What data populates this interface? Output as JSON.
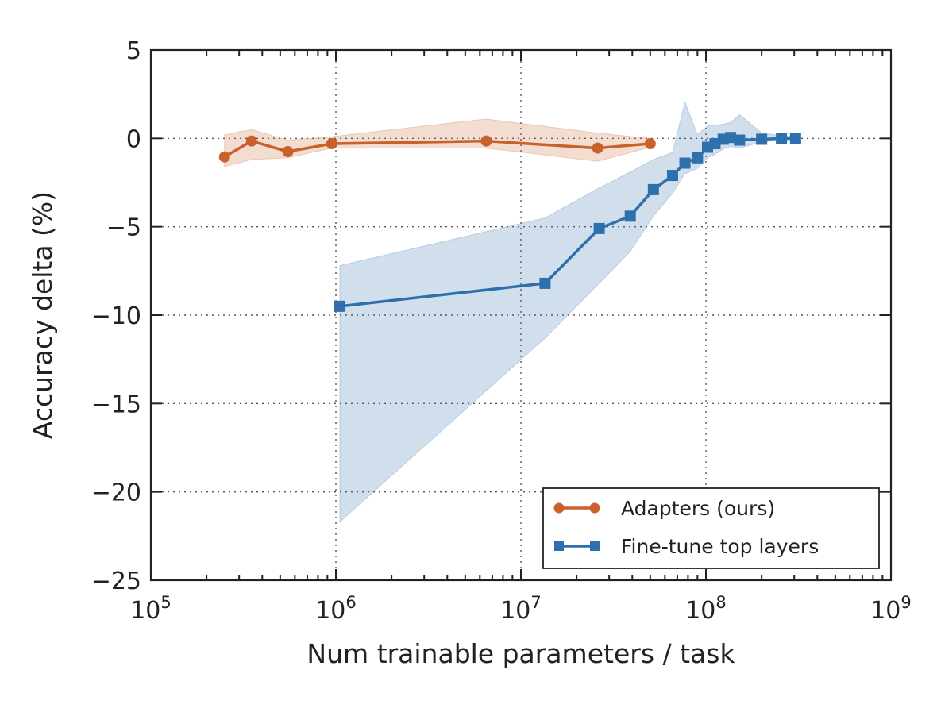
{
  "chart_data": {
    "type": "line",
    "xlabel": "Num trainable parameters / task",
    "ylabel": "Accuracy delta (%)",
    "x_scale": "log",
    "xlim": [
      100000,
      1000000000
    ],
    "ylim": [
      -25,
      5
    ],
    "x_ticks": [
      {
        "value": 100000,
        "base": "10",
        "exp": "5"
      },
      {
        "value": 1000000,
        "base": "10",
        "exp": "6"
      },
      {
        "value": 10000000,
        "base": "10",
        "exp": "7"
      },
      {
        "value": 100000000,
        "base": "10",
        "exp": "8"
      },
      {
        "value": 1000000000,
        "base": "10",
        "exp": "9"
      }
    ],
    "y_ticks": [
      {
        "value": 5,
        "label": "5"
      },
      {
        "value": 0,
        "label": "0"
      },
      {
        "value": -5,
        "label": "−5"
      },
      {
        "value": -10,
        "label": "−10"
      },
      {
        "value": -15,
        "label": "−15"
      },
      {
        "value": -20,
        "label": "−20"
      },
      {
        "value": -25,
        "label": "−25"
      }
    ],
    "grid": true,
    "legend_position": "lower-right",
    "series": [
      {
        "name": "Adapters (ours)",
        "color": "#c8612b",
        "marker": "circle",
        "x": [
          250000,
          350000,
          550000,
          950000,
          6500000,
          26000000,
          50000000
        ],
        "y": [
          -1.05,
          -0.15,
          -0.75,
          -0.3,
          -0.15,
          -0.55,
          -0.3
        ],
        "band_upper": [
          0.2,
          0.5,
          -0.1,
          0.1,
          1.1,
          0.3,
          0.0
        ],
        "band_lower": [
          -1.6,
          -1.2,
          -1.1,
          -0.55,
          -0.55,
          -1.3,
          -0.5
        ]
      },
      {
        "name": "Fine-tune top layers",
        "color": "#2e6fad",
        "marker": "square",
        "x": [
          1050000,
          13500000,
          26500000,
          39000000,
          52000000,
          66000000,
          77000000,
          90000000,
          102000000,
          112000000,
          124000000,
          136000000,
          152000000,
          200000000,
          256000000,
          305000000
        ],
        "y": [
          -9.5,
          -8.2,
          -5.1,
          -4.4,
          -2.9,
          -2.1,
          -1.4,
          -1.1,
          -0.5,
          -0.3,
          -0.05,
          0.05,
          -0.1,
          -0.05,
          0.0,
          0.0
        ],
        "band_upper": [
          -7.2,
          -4.5,
          -2.8,
          -1.9,
          -1.2,
          -0.8,
          2.05,
          0.2,
          0.7,
          0.75,
          0.8,
          0.9,
          1.35,
          0.3,
          0.15,
          0.1
        ],
        "band_lower": [
          -21.7,
          -11.3,
          -8.2,
          -6.4,
          -4.4,
          -3.1,
          -2.0,
          -1.7,
          -1.1,
          -0.9,
          -0.6,
          -0.45,
          -0.55,
          -0.2,
          -0.1,
          -0.05
        ]
      }
    ]
  }
}
